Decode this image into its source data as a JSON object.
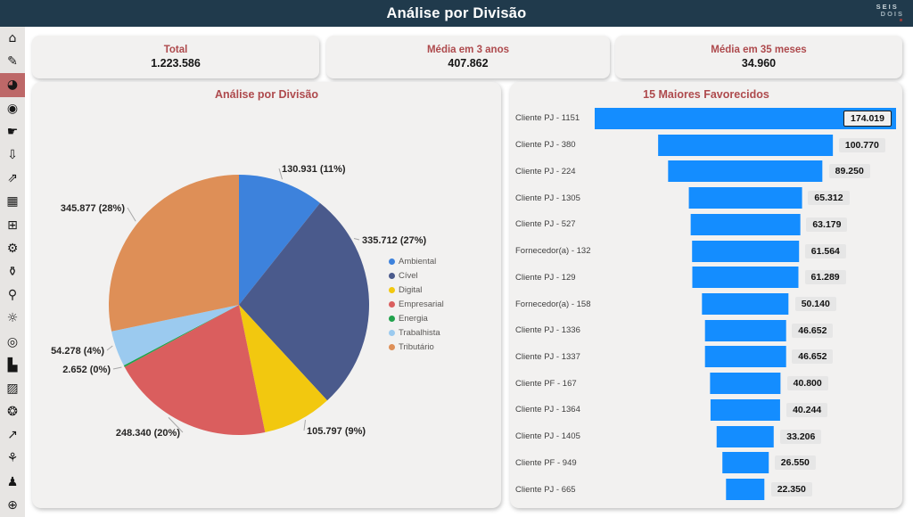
{
  "header": {
    "title": "Análise por Divisão",
    "logo_line1": "SEIS",
    "logo_line2": "DOIS"
  },
  "colors": {
    "header_bg": "#203A4C",
    "accent_title": "#AE4A4D",
    "card_bg": "#F2F1F0",
    "sidebar_bg": "#E7E5E3",
    "sidebar_active_bg": "#BD6868",
    "bar_blue": "#148DFF",
    "value_pill_bg": "#E6E6E6"
  },
  "sidebar": {
    "items": [
      {
        "name": "home-icon",
        "glyph": "⌂",
        "active": false
      },
      {
        "name": "report-edit-icon",
        "glyph": "✎",
        "active": false
      },
      {
        "name": "pie-chart-icon",
        "glyph": "◕",
        "active": true
      },
      {
        "name": "kpi-gauge-icon",
        "glyph": "◉",
        "active": false
      },
      {
        "name": "money-hand-icon",
        "glyph": "☛",
        "active": false
      },
      {
        "name": "discount-arrow-icon",
        "glyph": "⇩",
        "active": false
      },
      {
        "name": "growth-chart-icon",
        "glyph": "⇗",
        "active": false
      },
      {
        "name": "table-icon",
        "glyph": "▦",
        "active": false
      },
      {
        "name": "chart-board-icon",
        "glyph": "⊞",
        "active": false
      },
      {
        "name": "gears-icon",
        "glyph": "⚙",
        "active": false
      },
      {
        "name": "money-bag-icon",
        "glyph": "⚱",
        "active": false
      },
      {
        "name": "chart-audit-icon",
        "glyph": "⚲",
        "active": false
      },
      {
        "name": "dollar-rays-icon",
        "glyph": "☼",
        "active": false
      },
      {
        "name": "target-icon",
        "glyph": "◎",
        "active": false
      },
      {
        "name": "podium-icon",
        "glyph": "▙",
        "active": false
      },
      {
        "name": "combo-chart-icon",
        "glyph": "▨",
        "active": false
      },
      {
        "name": "coins-icon",
        "glyph": "❂",
        "active": false
      },
      {
        "name": "profit-growth-icon",
        "glyph": "↗",
        "active": false
      },
      {
        "name": "money-tree-icon",
        "glyph": "⚘",
        "active": false
      },
      {
        "name": "people-chart-icon",
        "glyph": "♟",
        "active": false
      },
      {
        "name": "globe-icon",
        "glyph": "⊕",
        "active": false
      }
    ]
  },
  "kpis": [
    {
      "label": "Total",
      "value": "1.223.586"
    },
    {
      "label": "Média em 3 anos",
      "value": "407.862"
    },
    {
      "label": "Média em 35 meses",
      "value": "34.960"
    }
  ],
  "chart_data": [
    {
      "type": "pie",
      "title": "Análise por Divisão",
      "legend_position": "right",
      "series": [
        {
          "name": "Ambiental",
          "value": 130931,
          "label": "130.931 (11%)",
          "color": "#3D82DC"
        },
        {
          "name": "Cível",
          "value": 335712,
          "label": "335.712 (27%)",
          "color": "#4A5A8C"
        },
        {
          "name": "Digital",
          "value": 105797,
          "label": "105.797 (9%)",
          "color": "#F2C80F"
        },
        {
          "name": "Empresarial",
          "value": 248340,
          "label": "248.340 (20%)",
          "color": "#DA5E5E"
        },
        {
          "name": "Energia",
          "value": 2652,
          "label": "2.652 (0%)",
          "color": "#21A24C"
        },
        {
          "name": "Trabalhista",
          "value": 54278,
          "label": "54.278 (4%)",
          "color": "#9BCAEF"
        },
        {
          "name": "Tributário",
          "value": 345877,
          "label": "345.877 (28%)",
          "color": "#DE8F57"
        }
      ]
    },
    {
      "type": "bar",
      "title": "15 Maiores Favorecidos",
      "orientation": "horizontal-funnel",
      "bar_color": "#148DFF",
      "xmax": 174019,
      "categories": [
        "Cliente PJ - 1151",
        "Cliente PJ - 380",
        "Cliente PJ - 224",
        "Cliente PJ - 1305",
        "Cliente PJ - 527",
        "Fornecedor(a) - 132",
        "Cliente PJ - 129",
        "Fornecedor(a) - 158",
        "Cliente PJ - 1336",
        "Cliente PJ - 1337",
        "Cliente PF - 167",
        "Cliente PJ - 1364",
        "Cliente PJ - 1405",
        "Cliente PF - 949",
        "Cliente PJ - 665"
      ],
      "values": [
        174019,
        100770,
        89250,
        65312,
        63179,
        61564,
        61289,
        50140,
        46652,
        46652,
        40800,
        40244,
        33206,
        26550,
        22350
      ],
      "value_labels": [
        "174.019",
        "100.770",
        "89.250",
        "65.312",
        "63.179",
        "61.564",
        "61.289",
        "50.140",
        "46.652",
        "46.652",
        "40.800",
        "40.244",
        "33.206",
        "26.550",
        "22.350"
      ]
    }
  ]
}
